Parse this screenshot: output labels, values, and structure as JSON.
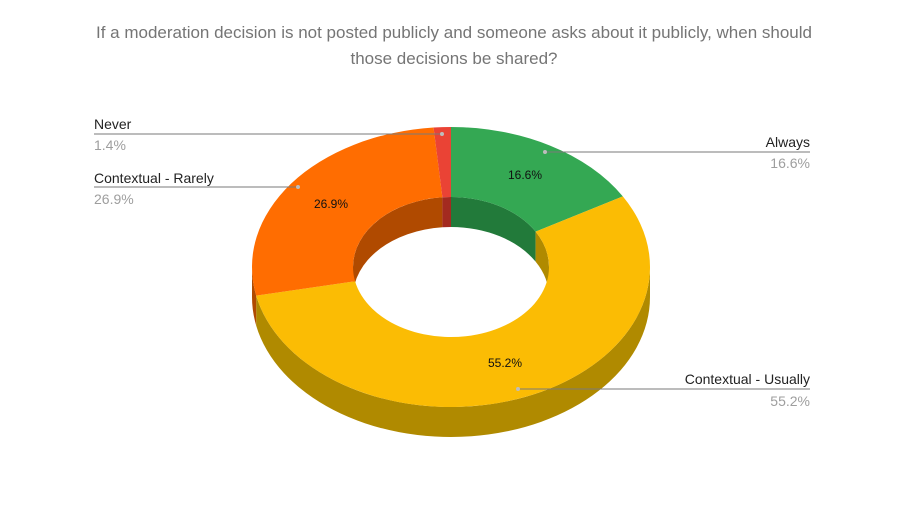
{
  "chart_data": {
    "type": "pie",
    "title_lines": [
      "If a moderation decision is not posted publicly and someone asks about it publicly, when should",
      "those decisions be shared?"
    ],
    "slices": [
      {
        "label": "Always",
        "value": 16.6,
        "pct_label": "16.6%",
        "color": "#34a853",
        "dark": "#227a3a"
      },
      {
        "label": "Contextual - Usually",
        "value": 55.2,
        "pct_label": "55.2%",
        "color": "#fbbc04",
        "dark": "#b08a00"
      },
      {
        "label": "Contextual - Rarely",
        "value": 26.9,
        "pct_label": "26.9%",
        "color": "#ff6d01",
        "dark": "#b04a00"
      },
      {
        "label": "Never",
        "value": 1.4,
        "pct_label": "1.4%",
        "color": "#ea4335",
        "dark": "#a32a20"
      }
    ],
    "style": "3d-donut",
    "legend": "callout labels"
  }
}
